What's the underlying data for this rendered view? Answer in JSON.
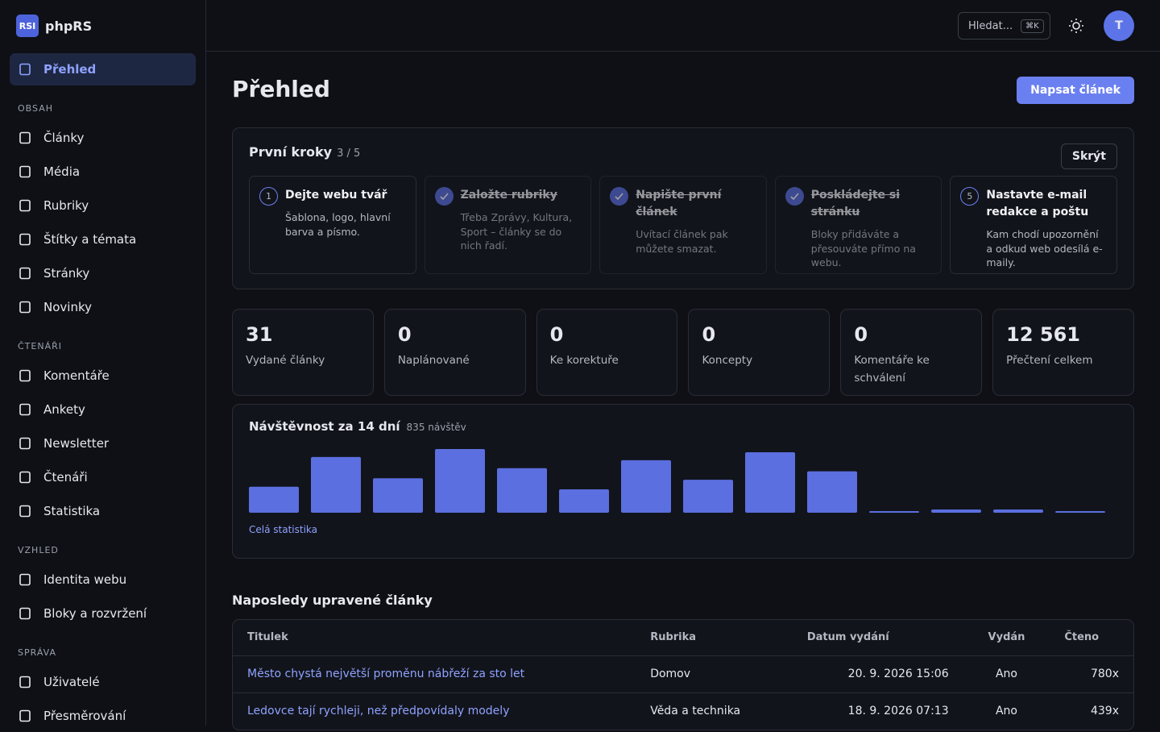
{
  "sidebar": {
    "logo": "RSI",
    "brand": "phpRS",
    "active": "Přehled",
    "sections": [
      {
        "title": "OBSAH",
        "items": [
          "Články",
          "Média",
          "Rubriky",
          "Štítky a témata",
          "Stránky",
          "Novinky"
        ]
      },
      {
        "title": "ČTENÁŘI",
        "items": [
          "Komentáře",
          "Ankety",
          "Newsletter",
          "Čtenáři",
          "Statistika"
        ]
      },
      {
        "title": "VZHLED",
        "items": [
          "Identita webu",
          "Bloky a rozvržení"
        ]
      },
      {
        "title": "SPRÁVA",
        "items": [
          "Uživatelé",
          "Přesměrování"
        ]
      }
    ]
  },
  "topbar": {
    "search": "Hledat...",
    "shortcut": "⌘K",
    "avatar": "T"
  },
  "header": {
    "title": "Přehled",
    "button": "Napsat článek"
  },
  "onboarding": {
    "title": "První kroky",
    "progress": "3 / 5",
    "hide": "Skrýt",
    "steps": [
      {
        "number": "1",
        "title": "Dejte webu tvář",
        "text": "Šablona, logo, hlavní barva a písmo.",
        "done": false
      },
      {
        "title": "Založte rubriky",
        "text": "Třeba Zprávy, Kultura, Sport – články se do nich řadí.",
        "done": true
      },
      {
        "title": "Napište první článek",
        "text": "Uvítací článek pak můžete smazat.",
        "done": true
      },
      {
        "title": "Poskládejte si stránku",
        "text": "Bloky přidáváte a přesouváte přímo na webu.",
        "done": true
      },
      {
        "number": "5",
        "title": "Nastavte e-mail redakce a poštu",
        "text": "Kam chodí upozornění a odkud web odesílá e-maily.",
        "done": false
      }
    ]
  },
  "stats": [
    {
      "value": "31",
      "label": "Vydané články"
    },
    {
      "value": "0",
      "label": "Naplánované"
    },
    {
      "value": "0",
      "label": "Ke korektuře"
    },
    {
      "value": "0",
      "label": "Koncepty"
    },
    {
      "value": "0",
      "label": "Komentáře ke schválení"
    },
    {
      "value": "12 561",
      "label": "Přečtení celkem"
    }
  ],
  "chart_data": {
    "type": "bar",
    "title": "Návštěvnost za 14 dní",
    "subtitle": "835 návštěv",
    "link": "Celá statistika",
    "color": "#5b6fe0",
    "values": [
      49,
      105,
      65,
      120,
      84,
      44,
      99,
      62,
      114,
      78,
      2,
      6,
      6,
      1
    ]
  },
  "recent": {
    "title": "Naposledy upravené články",
    "columns": [
      "Titulek",
      "Rubrika",
      "Datum vydání",
      "Vydán",
      "Čteno"
    ],
    "rows": [
      [
        "Město chystá největší proměnu nábřeží za sto let",
        "Domov",
        "20. 9. 2026 15:06",
        "Ano",
        "780x"
      ],
      [
        "Ledovce tají rychleji, než předpovídaly modely",
        "Věda a technika",
        "18. 9. 2026 07:13",
        "Ano",
        "439x"
      ]
    ]
  }
}
